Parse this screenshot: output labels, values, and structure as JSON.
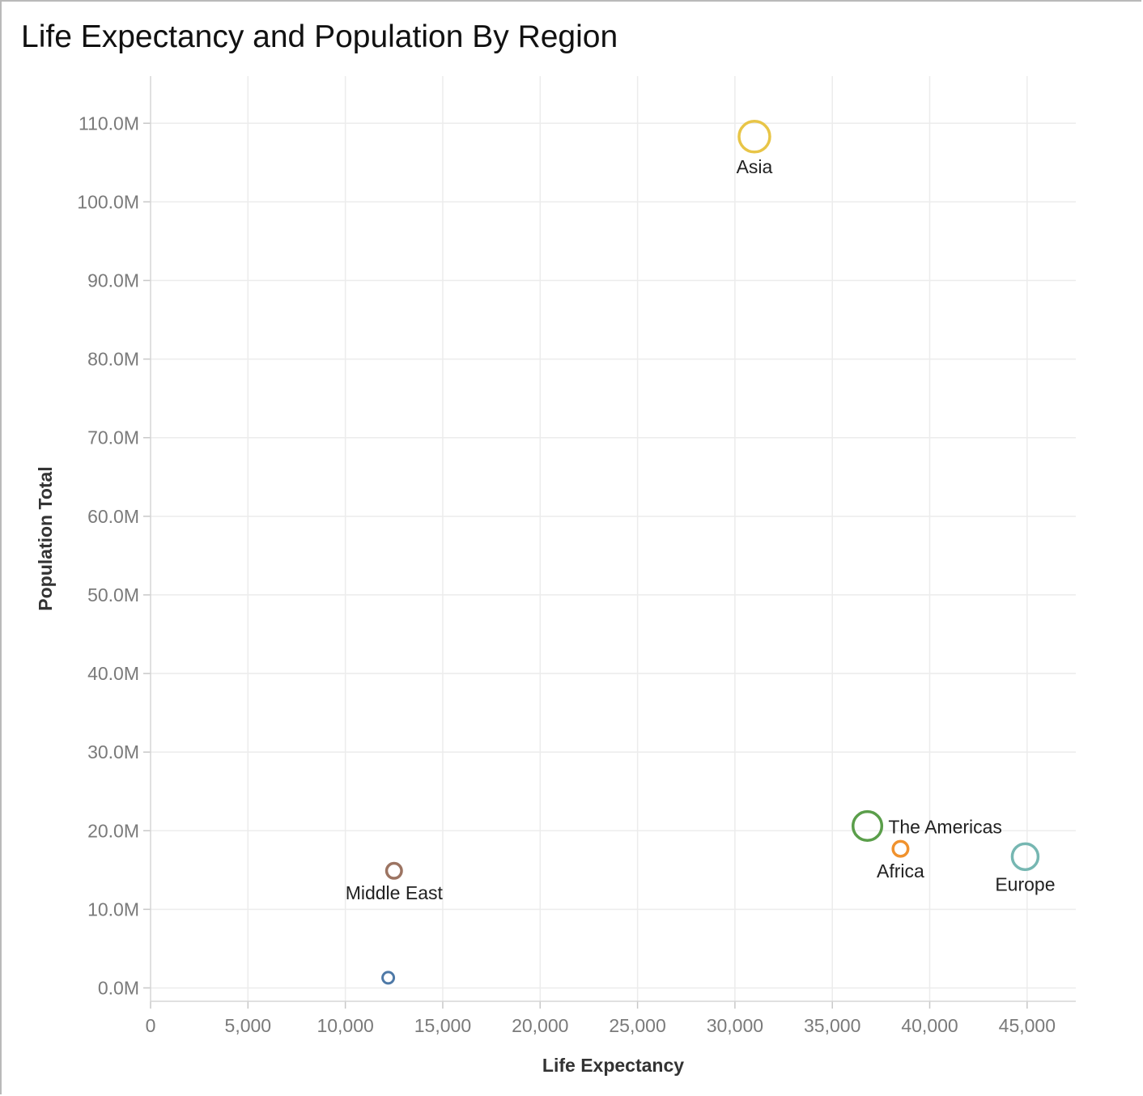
{
  "chart_data": {
    "type": "scatter",
    "title": "Life Expectancy and Population By Region",
    "xlabel": "Life Expectancy",
    "ylabel": "Population Total",
    "xlim": [
      0,
      47500
    ],
    "ylim": [
      -1700000,
      116000000
    ],
    "x_ticks": [
      0,
      5000,
      10000,
      15000,
      20000,
      25000,
      30000,
      35000,
      40000,
      45000
    ],
    "x_tick_labels": [
      "0",
      "5,000",
      "10,000",
      "15,000",
      "20,000",
      "25,000",
      "30,000",
      "35,000",
      "40,000",
      "45,000"
    ],
    "y_ticks": [
      0,
      10000000,
      20000000,
      30000000,
      40000000,
      50000000,
      60000000,
      70000000,
      80000000,
      90000000,
      100000000,
      110000000
    ],
    "y_tick_labels": [
      "0.0M",
      "10.0M",
      "20.0M",
      "30.0M",
      "40.0M",
      "50.0M",
      "60.0M",
      "70.0M",
      "80.0M",
      "90.0M",
      "100.0M",
      "110.0M"
    ],
    "grid": true,
    "points": [
      {
        "label": "Asia",
        "x": 31000,
        "y": 108300000,
        "size": 1.0,
        "color": "#e8c547",
        "label_position": "below"
      },
      {
        "label": "The Americas",
        "x": 36800,
        "y": 20600000,
        "size": 0.92,
        "color": "#5a9e4a",
        "label_position": "right"
      },
      {
        "label": "Africa",
        "x": 38500,
        "y": 17700000,
        "size": 0.35,
        "color": "#f0922e",
        "label_position": "below"
      },
      {
        "label": "Europe",
        "x": 44900,
        "y": 16700000,
        "size": 0.8,
        "color": "#76b7b2",
        "label_position": "below"
      },
      {
        "label": "Middle East",
        "x": 12500,
        "y": 14900000,
        "size": 0.35,
        "color": "#9c7462",
        "label_position": "below"
      },
      {
        "label": "",
        "x": 12200,
        "y": 1300000,
        "size": 0.2,
        "color": "#4e79a7",
        "label_position": "none"
      }
    ]
  }
}
